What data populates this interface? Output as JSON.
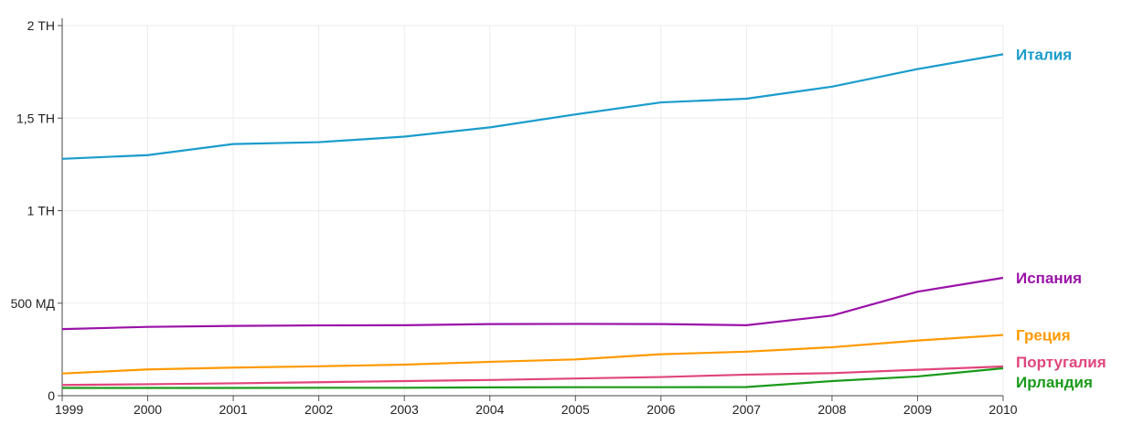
{
  "chart_data": {
    "type": "line",
    "x": [
      "1999",
      "2000",
      "2001",
      "2002",
      "2003",
      "2004",
      "2005",
      "2006",
      "2007",
      "2008",
      "2009",
      "2010"
    ],
    "xlim": [
      1999,
      2010
    ],
    "ylim": [
      0,
      2000000000000
    ],
    "y_ticks": [
      {
        "value": 0,
        "label": "0"
      },
      {
        "value": 500000000000,
        "label": "500 МД"
      },
      {
        "value": 1000000000000,
        "label": "1 ТН"
      },
      {
        "value": 1500000000000,
        "label": "1,5 ТН"
      },
      {
        "value": 2000000000000,
        "label": "2 ТН"
      }
    ],
    "grid": true,
    "legend": "inline-right",
    "series": [
      {
        "name": "Италия",
        "color": "#1a9ccc",
        "values": [
          1280000000000,
          1300000000000,
          1360000000000,
          1370000000000,
          1400000000000,
          1450000000000,
          1520000000000,
          1585000000000,
          1605000000000,
          1670000000000,
          1765000000000,
          1845000000000
        ]
      },
      {
        "name": "Испания",
        "color": "#9a12a8",
        "values": [
          360000000000,
          372000000000,
          377000000000,
          380000000000,
          381000000000,
          387000000000,
          388000000000,
          387000000000,
          381000000000,
          433000000000,
          562000000000,
          637000000000
        ]
      },
      {
        "name": "Греция",
        "color": "#ff9900",
        "values": [
          120000000000,
          142000000000,
          152000000000,
          159000000000,
          168000000000,
          183000000000,
          196000000000,
          224000000000,
          238000000000,
          262000000000,
          298000000000,
          328000000000
        ]
      },
      {
        "name": "Португалия",
        "color": "#e0457b",
        "values": [
          58000000000,
          62000000000,
          67000000000,
          73000000000,
          79000000000,
          85000000000,
          93000000000,
          101000000000,
          114000000000,
          122000000000,
          140000000000,
          158000000000
        ]
      },
      {
        "name": "Ирландия",
        "color": "#1a9a1a",
        "values": [
          42000000000,
          42000000000,
          42000000000,
          43000000000,
          43000000000,
          45000000000,
          46000000000,
          46000000000,
          47000000000,
          79000000000,
          104000000000,
          148000000000
        ]
      }
    ]
  }
}
